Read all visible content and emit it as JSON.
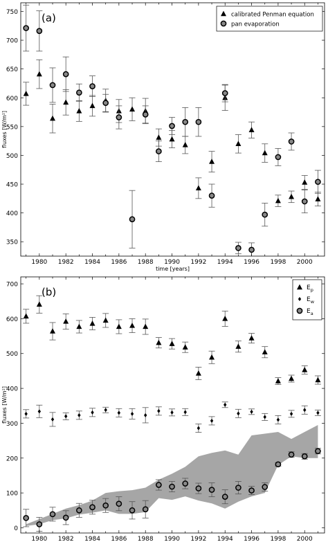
{
  "chart_data": [
    {
      "type": "scatter",
      "panel_label": "(a)",
      "xlabel": "time [years]",
      "ylabel": "fluxes [W/m²]",
      "xlim": [
        1978.6,
        2001.5
      ],
      "ylim": [
        325,
        765
      ],
      "xticks": [
        1980,
        1982,
        1984,
        1986,
        1988,
        1990,
        1992,
        1994,
        1996,
        1998,
        2000
      ],
      "yticks": [
        350,
        400,
        450,
        500,
        550,
        600,
        650,
        700,
        750
      ],
      "legend_position": "top-right",
      "x": [
        1979,
        1980,
        1981,
        1982,
        1983,
        1984,
        1985,
        1986,
        1987,
        1988,
        1989,
        1990,
        1991,
        1992,
        1993,
        1994,
        1995,
        1996,
        1997,
        1998,
        1999,
        2000,
        2001
      ],
      "series": [
        {
          "name": "calibrated Penman equation",
          "marker": "triangle",
          "values": [
            607,
            641,
            564,
            592,
            577,
            586,
            595,
            577,
            580,
            577,
            531,
            528,
            518,
            443,
            489,
            600,
            520,
            544,
            504,
            421,
            428,
            453,
            424
          ],
          "errors": [
            20,
            25,
            25,
            22,
            18,
            18,
            20,
            20,
            20,
            22,
            15,
            15,
            15,
            18,
            18,
            22,
            16,
            14,
            16,
            10,
            10,
            12,
            12
          ]
        },
        {
          "name": "pan evaporation",
          "marker": "circle",
          "values": [
            721,
            716,
            622,
            641,
            609,
            620,
            591,
            566,
            389,
            571,
            507,
            551,
            558,
            558,
            430,
            608,
            339,
            336,
            397,
            497,
            524,
            420,
            454
          ],
          "errors": [
            40,
            35,
            30,
            30,
            15,
            18,
            15,
            20,
            50,
            15,
            18,
            15,
            25,
            25,
            20,
            15,
            10,
            12,
            20,
            15,
            15,
            20,
            20
          ]
        }
      ]
    },
    {
      "type": "scatter",
      "panel_label": "(b)",
      "xlabel": "time [years]",
      "ylabel": "fluxes [W/m²]",
      "xlim": [
        1978.6,
        2001.5
      ],
      "ylim": [
        -15,
        720
      ],
      "xticks": [
        1980,
        1982,
        1984,
        1986,
        1988,
        1990,
        1992,
        1994,
        1996,
        1998,
        2000
      ],
      "yticks": [
        0,
        100,
        200,
        300,
        400,
        500,
        600,
        700
      ],
      "legend_position": "top-right",
      "x": [
        1979,
        1980,
        1981,
        1982,
        1983,
        1984,
        1985,
        1986,
        1987,
        1988,
        1989,
        1990,
        1991,
        1992,
        1993,
        1994,
        1995,
        1996,
        1997,
        1998,
        1999,
        2000,
        2001
      ],
      "series": [
        {
          "name": "E",
          "subscript": "p",
          "marker": "triangle",
          "values": [
            607,
            641,
            564,
            592,
            577,
            586,
            595,
            577,
            580,
            577,
            531,
            528,
            518,
            443,
            489,
            600,
            520,
            544,
            504,
            421,
            428,
            453,
            424
          ],
          "errors": [
            20,
            25,
            25,
            22,
            18,
            18,
            20,
            20,
            20,
            22,
            15,
            15,
            15,
            18,
            18,
            22,
            16,
            14,
            16,
            10,
            10,
            12,
            12
          ]
        },
        {
          "name": "E",
          "subscript": "w",
          "marker": "diamond",
          "values": [
            327,
            334,
            311,
            320,
            323,
            331,
            338,
            330,
            327,
            323,
            335,
            331,
            332,
            286,
            307,
            353,
            328,
            333,
            318,
            310,
            327,
            338,
            330
          ],
          "errors": [
            12,
            18,
            20,
            10,
            12,
            12,
            8,
            12,
            15,
            22,
            12,
            10,
            10,
            12,
            12,
            8,
            12,
            8,
            10,
            12,
            10,
            12,
            8
          ]
        },
        {
          "name": "E",
          "subscript": "a",
          "marker": "circle",
          "values": [
            28,
            10,
            39,
            29,
            50,
            59,
            64,
            69,
            50,
            53,
            123,
            118,
            127,
            113,
            109,
            89,
            115,
            107,
            117,
            182,
            210,
            205,
            220
          ],
          "errors": [
            25,
            20,
            20,
            20,
            20,
            20,
            20,
            20,
            25,
            25,
            15,
            15,
            15,
            15,
            20,
            20,
            18,
            12,
            12,
            5,
            8,
            8,
            8
          ]
        }
      ],
      "band": {
        "lower": [
          5,
          10,
          22,
          27,
          38,
          43,
          50,
          40,
          40,
          45,
          85,
          80,
          90,
          78,
          70,
          55,
          75,
          90,
          100,
          180,
          205,
          200,
          200
        ],
        "upper": [
          10,
          25,
          40,
          55,
          65,
          78,
          100,
          105,
          108,
          115,
          138,
          155,
          175,
          205,
          215,
          222,
          210,
          265,
          270,
          275,
          255,
          275,
          295
        ]
      }
    }
  ]
}
